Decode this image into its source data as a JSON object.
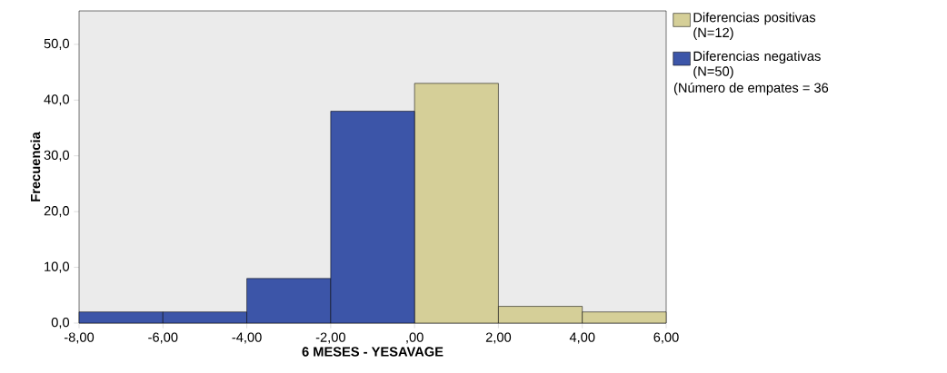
{
  "chart_data": {
    "type": "histogram",
    "xlabel": "6 MESES - YESAVAGE",
    "ylabel": "Frecuencia",
    "bins": [
      -8,
      -6,
      -4,
      -2,
      0,
      2,
      4,
      6
    ],
    "series": [
      {
        "name": "Diferencias positivas (N=12)",
        "color": "#d5cf98",
        "values": [
          null,
          null,
          null,
          null,
          43,
          3,
          2
        ]
      },
      {
        "name": "Diferencias negativas (N=50)",
        "color": "#3c55a8",
        "values": [
          2,
          2,
          8,
          38,
          null,
          null,
          null
        ]
      }
    ],
    "xlim": [
      -8,
      6
    ],
    "ylim": [
      0,
      56
    ],
    "xticks": [
      {
        "value": -8,
        "label": "-8,00"
      },
      {
        "value": -6,
        "label": "-6,00"
      },
      {
        "value": -4,
        "label": "-4,00"
      },
      {
        "value": -2,
        "label": "-2,00"
      },
      {
        "value": 0,
        "label": ",00"
      },
      {
        "value": 2,
        "label": "2,00"
      },
      {
        "value": 4,
        "label": "4,00"
      },
      {
        "value": 6,
        "label": "6,00"
      }
    ],
    "yticks": [
      {
        "value": 0,
        "label": "0,0"
      },
      {
        "value": 10,
        "label": "10,0"
      },
      {
        "value": 20,
        "label": "20,0"
      },
      {
        "value": 30,
        "label": "30,0"
      },
      {
        "value": 40,
        "label": "40,0"
      },
      {
        "value": 50,
        "label": "50,0"
      }
    ],
    "legend": "right",
    "annotations": [
      "(Número de empates = 36"
    ]
  }
}
